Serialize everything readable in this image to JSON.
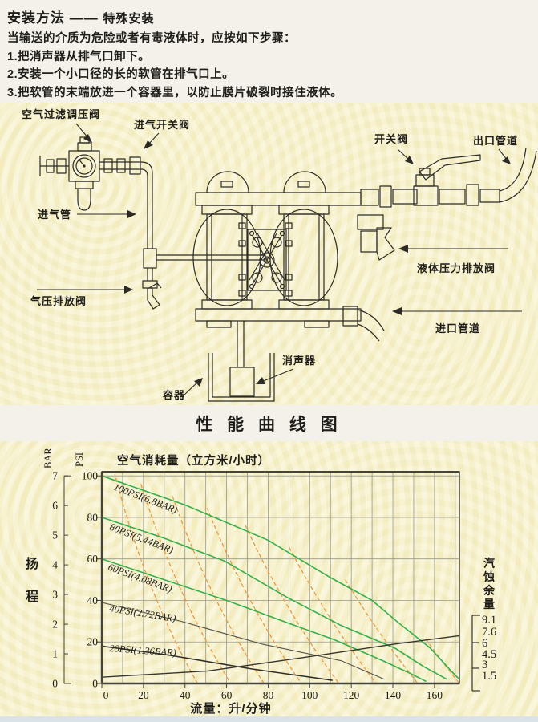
{
  "instructions": {
    "title_main": "安装方法",
    "title_dash": "——",
    "title_sub": "特殊安装",
    "intro": "当输送的介质为危险或者有毒液体时，应按如下步骤：",
    "steps": [
      "1.把消声器从排气口卸下。",
      "2.安装一个小口径的长的软管在排气口上。",
      "3.把软管的末端放进一个容器里，以防止膜片破裂时接住液体。"
    ]
  },
  "diagram": {
    "labels": [
      {
        "id": "air-filter-regulator",
        "text": "空气过滤调压阀"
      },
      {
        "id": "intake-switch-valve",
        "text": "进气开关阀"
      },
      {
        "id": "intake-pipe",
        "text": "进气管"
      },
      {
        "id": "air-pressure-discharge-valve",
        "text": "气压排放阀"
      },
      {
        "id": "switch-valve",
        "text": "开关阀"
      },
      {
        "id": "outlet-pipe",
        "text": "出口管道"
      },
      {
        "id": "liquid-pressure-discharge-valve",
        "text": "液体压力排放阀"
      },
      {
        "id": "inlet-pipe",
        "text": "进口管道"
      },
      {
        "id": "muffler",
        "text": "消声器"
      },
      {
        "id": "container",
        "text": "容器"
      }
    ]
  },
  "performance": {
    "band_title": "性 能 曲 线 图"
  },
  "chart_data": {
    "type": "line",
    "title": "性 能 曲 线 图",
    "inner_title": "空气消耗量（立方米/小时）",
    "xlabel": "流量：升/分钟",
    "xlim": [
      0,
      172
    ],
    "ylim": [
      0,
      102
    ],
    "x_ticks": [
      0,
      20,
      40,
      60,
      80,
      100,
      120,
      140,
      160
    ],
    "grid": "on",
    "left_axis_outer": {
      "label": "BAR",
      "ticks": [
        7,
        6,
        5,
        4,
        3,
        2,
        1,
        0
      ]
    },
    "left_axis_inner": {
      "label": "PSI",
      "ticks": [
        100,
        80,
        60,
        40,
        20,
        0
      ]
    },
    "left_axis_title": "扬程",
    "right_axis": {
      "label": "汽蚀余量",
      "ticks": [
        "9.1",
        "7.6",
        "6",
        "4.5",
        "3",
        "1.5"
      ]
    },
    "colors": {
      "grid": "#97998a",
      "frame": "#45443a",
      "green": "#33b04a",
      "dashed": "#ef9a3f",
      "dark": "#2e2d27"
    },
    "series": [
      {
        "name": "100PSI(6.8BAR)",
        "color": "#33b04a",
        "width": 1.6,
        "points": [
          [
            0,
            100
          ],
          [
            40,
            86
          ],
          [
            80,
            69
          ],
          [
            110,
            51
          ],
          [
            130,
            40
          ],
          [
            143,
            29
          ],
          [
            158,
            17
          ],
          [
            168,
            6
          ],
          [
            172,
            2
          ]
        ]
      },
      {
        "name": "80PSI(5.44BAR)",
        "color": "#33b04a",
        "width": 1.6,
        "points": [
          [
            0,
            80
          ],
          [
            30,
            70
          ],
          [
            59,
            59
          ],
          [
            90,
            41
          ],
          [
            115,
            28
          ],
          [
            141,
            17
          ],
          [
            155,
            8
          ],
          [
            166,
            2
          ]
        ]
      },
      {
        "name": "60PSI(4.08BAR)",
        "color": "#33b04a",
        "width": 1.6,
        "points": [
          [
            0,
            60
          ],
          [
            30,
            50
          ],
          [
            60,
            40
          ],
          [
            90,
            29
          ],
          [
            112,
            21
          ],
          [
            135,
            11
          ],
          [
            148,
            5
          ],
          [
            156,
            1
          ]
        ]
      },
      {
        "name": "40PSI(2.72BAR)",
        "color": "#55544a",
        "width": 1.1,
        "points": [
          [
            0,
            39
          ],
          [
            38,
            30
          ],
          [
            77,
            19
          ],
          [
            115,
            11
          ],
          [
            136,
            2
          ]
        ]
      },
      {
        "name": "20PSI(1.36BAR)",
        "color": "#2e2d27",
        "width": 1.6,
        "points": [
          [
            0,
            18
          ],
          [
            30,
            14
          ],
          [
            72,
            7
          ],
          [
            111,
            1.5
          ]
        ]
      },
      {
        "name": "",
        "color": "#35342d",
        "width": 1.4,
        "points": [
          [
            0,
            3
          ],
          [
            51,
            6
          ],
          [
            97,
            12.5
          ],
          [
            141,
            19
          ],
          [
            172,
            23
          ]
        ]
      }
    ],
    "air_consumption_curves": {
      "style": "dashed",
      "color": "#ef9a3f",
      "curves": [
        {
          "top_x": 6,
          "bottom_x": 46
        },
        {
          "top_x": 17,
          "bottom_x": 62
        },
        {
          "top_x": 30,
          "bottom_x": 78
        },
        {
          "top_x": 44,
          "bottom_x": 96
        },
        {
          "top_x": 58,
          "bottom_x": 114
        },
        {
          "top_x": 73,
          "bottom_x": 132
        },
        {
          "top_x": 90,
          "bottom_x": 152
        },
        {
          "top_x": 110,
          "bottom_x": 172
        },
        {
          "top_x": 132,
          "bottom_x": 192
        }
      ]
    }
  }
}
